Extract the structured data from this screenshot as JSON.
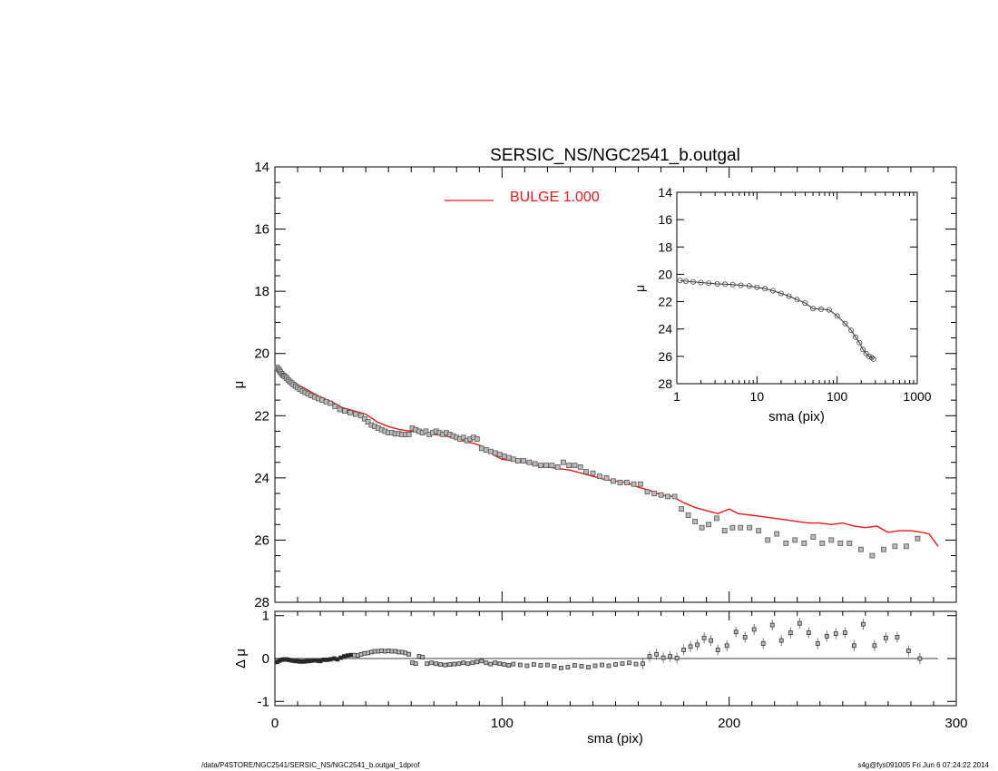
{
  "chart_data": [
    {
      "id": "main",
      "type": "scatter",
      "title": "SERSIC_NS/NGC2541_b.outgal",
      "xlabel": "",
      "ylabel": "μ",
      "xlim": [
        0,
        300
      ],
      "ylim": [
        28,
        14
      ],
      "y_reversed": true,
      "xticks": [
        0,
        100,
        200,
        300
      ],
      "yticks": [
        14,
        16,
        18,
        20,
        22,
        24,
        26,
        28
      ],
      "legend": {
        "position": "top-center",
        "entries": [
          {
            "label": "BULGE  1.000",
            "color": "#e41a1c"
          }
        ]
      },
      "series": [
        {
          "kind": "points",
          "color": "#555555",
          "x": [
            1.0,
            1.5,
            2.0,
            2.5,
            3.0,
            3.5,
            4.0,
            4.6,
            5.2,
            5.9,
            6.6,
            7.4,
            8.2,
            9.1,
            10.0,
            11.0,
            12.1,
            13.3,
            14.6,
            16.0,
            17.5,
            19.1,
            20.8,
            22.6,
            24.5,
            26.5,
            28.6,
            30.8,
            33.1,
            35.5,
            38.0,
            39.5,
            41.0,
            42.5,
            44.0,
            45.5,
            47.0,
            48.5,
            50.0,
            51.5,
            53.0,
            54.5,
            56.0,
            57.5,
            59.0,
            60.5,
            62.0,
            63.5,
            65.0,
            66.5,
            68.0,
            69.5,
            71.0,
            72.5,
            74.0,
            75.5,
            77.0,
            78.5,
            80.0,
            81.5,
            83.0,
            84.5,
            86.0,
            87.5,
            89.0,
            91.0,
            93.0,
            95.0,
            97.0,
            99.0,
            101.0,
            103.0,
            105.0,
            107.0,
            109.5,
            112.0,
            114.5,
            117.0,
            119.5,
            122.0,
            124.5,
            127.0,
            129.5,
            132.0,
            134.5,
            137.0,
            140.0,
            143.0,
            146.0,
            149.0,
            152.0,
            155.0,
            158.0,
            161.0,
            164.0,
            167.0,
            170.0,
            173.0,
            176.0,
            179.0,
            182.0,
            185.0,
            188.0,
            191.0,
            194.5,
            198.0,
            201.5,
            205.0,
            209.0,
            213.0,
            217.0,
            221.0,
            225.0,
            229.0,
            233.0,
            237.0,
            241.0,
            245.0,
            249.0,
            253.0,
            258.0,
            263.0,
            268.0,
            273.0,
            278.0,
            283.0
          ],
          "y": [
            20.45,
            20.5,
            20.55,
            20.6,
            20.65,
            20.7,
            20.72,
            20.75,
            20.8,
            20.85,
            20.9,
            20.95,
            21.0,
            21.05,
            21.1,
            21.15,
            21.2,
            21.25,
            21.3,
            21.35,
            21.4,
            21.45,
            21.5,
            21.55,
            21.6,
            21.7,
            21.8,
            21.85,
            21.9,
            21.95,
            22.0,
            22.1,
            22.2,
            22.3,
            22.35,
            22.4,
            22.45,
            22.5,
            22.55,
            22.55,
            22.58,
            22.58,
            22.6,
            22.6,
            22.6,
            22.4,
            22.45,
            22.5,
            22.55,
            22.5,
            22.6,
            22.55,
            22.5,
            22.55,
            22.6,
            22.55,
            22.6,
            22.65,
            22.7,
            22.75,
            22.7,
            22.8,
            22.75,
            22.7,
            22.75,
            23.05,
            23.1,
            23.15,
            23.2,
            23.25,
            23.3,
            23.35,
            23.4,
            23.45,
            23.45,
            23.5,
            23.55,
            23.6,
            23.6,
            23.6,
            23.65,
            23.5,
            23.6,
            23.6,
            23.65,
            23.8,
            23.85,
            23.95,
            24.0,
            24.1,
            24.15,
            24.15,
            24.2,
            24.2,
            24.45,
            24.5,
            24.55,
            24.6,
            24.6,
            25.0,
            25.2,
            25.4,
            25.6,
            25.5,
            25.3,
            25.7,
            25.6,
            25.6,
            25.6,
            25.7,
            26.0,
            25.8,
            26.1,
            26.0,
            26.1,
            25.9,
            26.1,
            26.0,
            26.1,
            26.1,
            26.3,
            26.5,
            26.3,
            26.2,
            26.2,
            25.95
          ]
        },
        {
          "kind": "line",
          "name": "BULGE  1.000",
          "color": "#e41a1c",
          "x": [
            1,
            3,
            6,
            10,
            15,
            20,
            25,
            30,
            35,
            40,
            45,
            50,
            55,
            60,
            65,
            70,
            75,
            80,
            85,
            88,
            90,
            93,
            96,
            100,
            105,
            110,
            115,
            120,
            125,
            130,
            135,
            140,
            145,
            150,
            155,
            160,
            165,
            170,
            175,
            180,
            185,
            190,
            195,
            200,
            204,
            210,
            215,
            220,
            225,
            230,
            235,
            240,
            245,
            250,
            255,
            260,
            265,
            270,
            275,
            280,
            285,
            288,
            292
          ],
          "y": [
            20.5,
            20.65,
            20.8,
            21.0,
            21.2,
            21.4,
            21.55,
            21.75,
            21.85,
            21.95,
            22.2,
            22.35,
            22.45,
            22.5,
            22.55,
            22.6,
            22.65,
            22.75,
            22.85,
            22.9,
            22.95,
            23.05,
            23.25,
            23.4,
            23.45,
            23.5,
            23.6,
            23.65,
            23.7,
            23.75,
            23.85,
            23.95,
            24.05,
            24.1,
            24.15,
            24.3,
            24.4,
            24.55,
            24.6,
            24.8,
            24.95,
            25.05,
            25.15,
            25.0,
            25.15,
            25.2,
            25.25,
            25.3,
            25.35,
            25.4,
            25.45,
            25.45,
            25.5,
            25.45,
            25.55,
            25.6,
            25.55,
            25.75,
            25.7,
            25.7,
            25.75,
            25.8,
            26.2
          ]
        }
      ]
    },
    {
      "id": "inset",
      "type": "scatter",
      "xlabel": "sma (pix)",
      "ylabel": "μ",
      "x_scale": "log",
      "xlim": [
        1,
        1000
      ],
      "ylim": [
        28,
        14
      ],
      "y_reversed": true,
      "xticks": [
        1,
        10,
        100,
        1000
      ],
      "yticks": [
        14,
        16,
        18,
        20,
        22,
        24,
        26,
        28
      ],
      "series": [
        {
          "kind": "points",
          "color": "#555555",
          "x": [
            1.1,
            1.3,
            1.6,
            2.0,
            2.5,
            3.2,
            4.0,
            5.0,
            6.3,
            8.0,
            10.0,
            12.6,
            15.8,
            20.0,
            25.1,
            31.6,
            39.8,
            50.1,
            63.1,
            79.4,
            100.0,
            125.9,
            150.0,
            170.0,
            190.0,
            210.0,
            230.0,
            250.0,
            270.0,
            285.0
          ],
          "y": [
            20.45,
            20.5,
            20.55,
            20.6,
            20.65,
            20.7,
            20.72,
            20.75,
            20.8,
            20.85,
            20.95,
            21.05,
            21.2,
            21.4,
            21.6,
            21.85,
            22.1,
            22.5,
            22.55,
            22.6,
            23.05,
            23.6,
            24.1,
            24.6,
            25.0,
            25.5,
            25.8,
            26.0,
            26.1,
            26.2
          ]
        }
      ]
    },
    {
      "id": "residual",
      "type": "scatter",
      "xlabel": "sma (pix)",
      "ylabel": "Δ μ",
      "xlim": [
        0,
        300
      ],
      "ylim": [
        -1.1,
        1.1
      ],
      "xticks": [
        0,
        100,
        200,
        300
      ],
      "yticks": [
        -1,
        0,
        1
      ],
      "reference_line": 0,
      "series": [
        {
          "kind": "points",
          "color": "#333333",
          "x": [
            1.0,
            2.0,
            3.0,
            4.0,
            5.0,
            6.0,
            7.0,
            8.0,
            9.0,
            10.0,
            11.0,
            12.0,
            13.0,
            14.0,
            15.0,
            16.0,
            17.0,
            18.0,
            19.0,
            20.0,
            21.5,
            23.0,
            24.5,
            26.0,
            27.5,
            29.0,
            30.5,
            32.0,
            33.5,
            35.0,
            36.5,
            38.0,
            39.5,
            41.0,
            42.5,
            44.0,
            45.5,
            47.0,
            48.5,
            50.0,
            51.5,
            53.0,
            54.5,
            56.0,
            57.5,
            59.0,
            60.5,
            62.0,
            63.5,
            65.0,
            67.0,
            69.0,
            71.0,
            73.0,
            75.0,
            77.0,
            79.0,
            81.0,
            83.0,
            85.0,
            87.0,
            89.0,
            91.0,
            93.0,
            95.0,
            97.0,
            99.0,
            101.0,
            103.0,
            105.0,
            108.0,
            111.0,
            114.0,
            117.0,
            120.0,
            123.0,
            126.0,
            129.0,
            132.0,
            135.0,
            138.0,
            141.0,
            144.0,
            147.0,
            150.0,
            153.0,
            156.0,
            159.0,
            162.0,
            165.0,
            168.0,
            171.0,
            174.0,
            177.0,
            180.0,
            183.0,
            186.0,
            189.0,
            192.0,
            195.0,
            199.0,
            203.0,
            207.0,
            211.0,
            215.0,
            219.0,
            223.0,
            227.0,
            231.0,
            235.0,
            239.0,
            243.0,
            247.0,
            251.0,
            255.0,
            259.0,
            264.0,
            269.0,
            274.0,
            279.0,
            284.0
          ],
          "y": [
            -0.08,
            -0.05,
            -0.03,
            -0.02,
            -0.02,
            -0.03,
            -0.04,
            -0.05,
            -0.06,
            -0.06,
            -0.07,
            -0.07,
            -0.07,
            -0.06,
            -0.06,
            -0.05,
            -0.04,
            -0.04,
            -0.05,
            -0.06,
            -0.03,
            -0.03,
            -0.02,
            0.0,
            -0.02,
            0.02,
            0.05,
            0.07,
            0.08,
            0.08,
            0.07,
            0.1,
            0.12,
            0.13,
            0.15,
            0.17,
            0.17,
            0.18,
            0.17,
            0.18,
            0.17,
            0.17,
            0.15,
            0.15,
            0.13,
            0.1,
            -0.1,
            -0.12,
            0.05,
            0.03,
            -0.12,
            -0.1,
            -0.12,
            -0.14,
            -0.15,
            -0.14,
            -0.13,
            -0.12,
            -0.1,
            -0.12,
            -0.1,
            -0.08,
            -0.06,
            -0.1,
            -0.13,
            -0.1,
            -0.12,
            -0.14,
            -0.16,
            -0.13,
            -0.15,
            -0.17,
            -0.14,
            -0.16,
            -0.15,
            -0.18,
            -0.22,
            -0.2,
            -0.16,
            -0.18,
            -0.2,
            -0.17,
            -0.15,
            -0.17,
            -0.14,
            -0.12,
            -0.1,
            -0.13,
            -0.12,
            0.05,
            0.1,
            0.02,
            0.05,
            0.01,
            0.2,
            0.28,
            0.32,
            0.48,
            0.42,
            0.2,
            0.3,
            0.62,
            0.5,
            0.68,
            0.35,
            0.78,
            0.42,
            0.6,
            0.82,
            0.6,
            0.35,
            0.52,
            0.58,
            0.6,
            0.3,
            0.8,
            0.3,
            0.48,
            0.5,
            0.18,
            0.0
          ]
        }
      ]
    }
  ],
  "footer": {
    "left": "/data/P4STORE/NGC2541/SERSIC_NS/NGC2541_b.outgal_1dprof",
    "right": "s4g@fys091005  Fri Jun  6 07:24:22 2014"
  }
}
